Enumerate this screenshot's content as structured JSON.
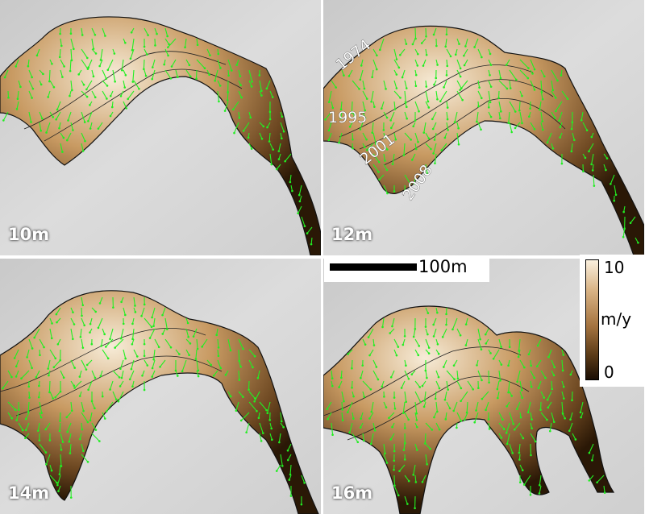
{
  "panels": [
    {
      "id": "p10",
      "label": "10m",
      "year_labels": []
    },
    {
      "id": "p12",
      "label": "12m",
      "year_labels": [
        "1974",
        "1995",
        "2001",
        "2008"
      ]
    },
    {
      "id": "p14",
      "label": "14m",
      "year_labels": []
    },
    {
      "id": "p16",
      "label": "16m",
      "year_labels": []
    }
  ],
  "scale_bar": {
    "label": "100m"
  },
  "colorbar": {
    "max": "10",
    "min": "0",
    "unit": "m/y",
    "colors": [
      "#faf0de",
      "#d9b486",
      "#a57440",
      "#5a3a17",
      "#1a0e04"
    ]
  },
  "colors": {
    "vectors": "#22ee22",
    "hillshade": "#d4d4d4",
    "outline": "#111111"
  }
}
